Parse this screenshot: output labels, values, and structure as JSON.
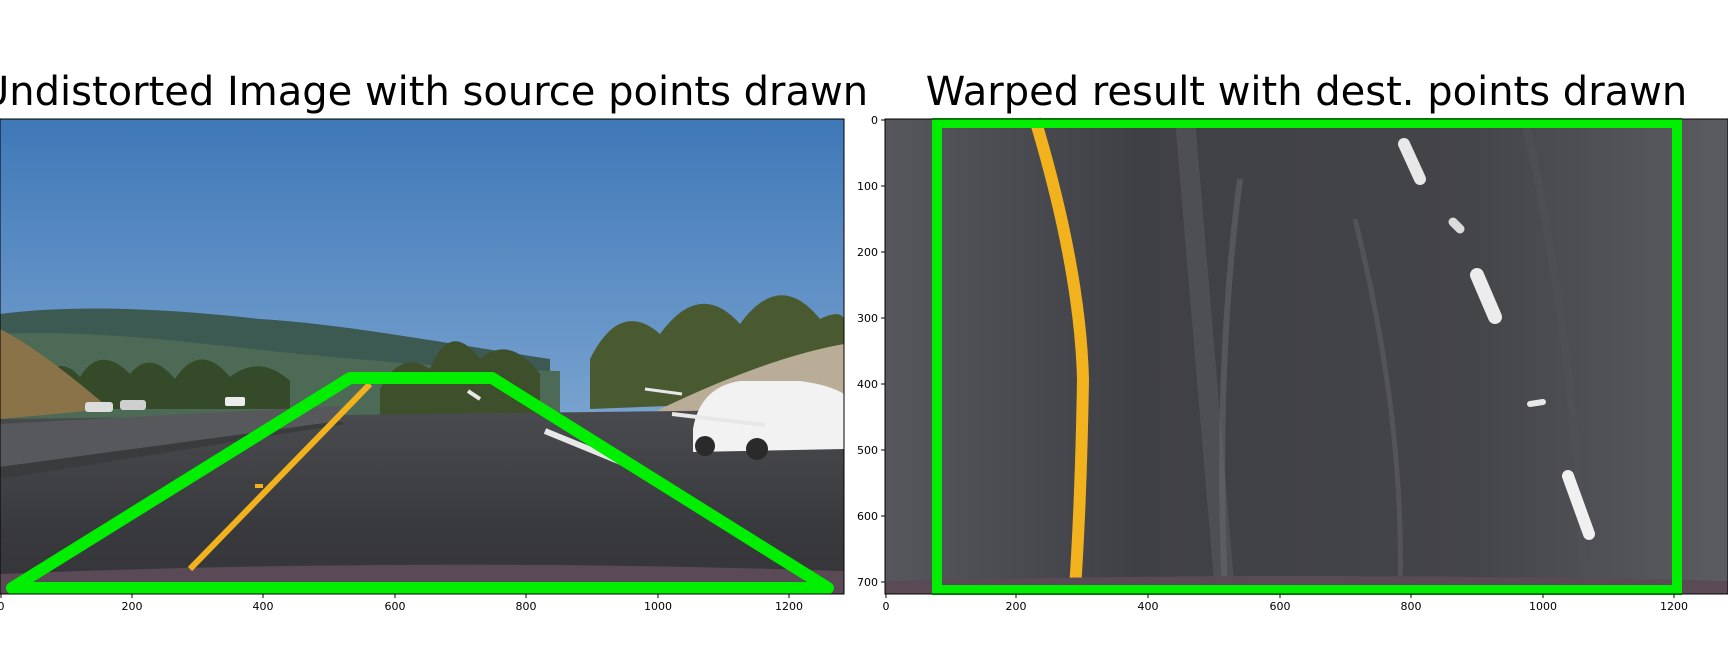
{
  "panels": {
    "left": {
      "title": "Undistorted Image with source points drawn",
      "x_ticks": [
        "0",
        "200",
        "400",
        "600",
        "800",
        "1000",
        "1200"
      ]
    },
    "right": {
      "title": "Warped result with dest. points drawn",
      "x_ticks": [
        "0",
        "200",
        "400",
        "600",
        "800",
        "1000",
        "1200"
      ],
      "y_ticks": [
        "0",
        "100",
        "200",
        "300",
        "400",
        "500",
        "600",
        "700"
      ]
    }
  },
  "colors": {
    "polygon": "#00ee00",
    "yellow_lane": "#f2b21e",
    "road": "#3f3f42",
    "sky": "#5d8fc4"
  }
}
